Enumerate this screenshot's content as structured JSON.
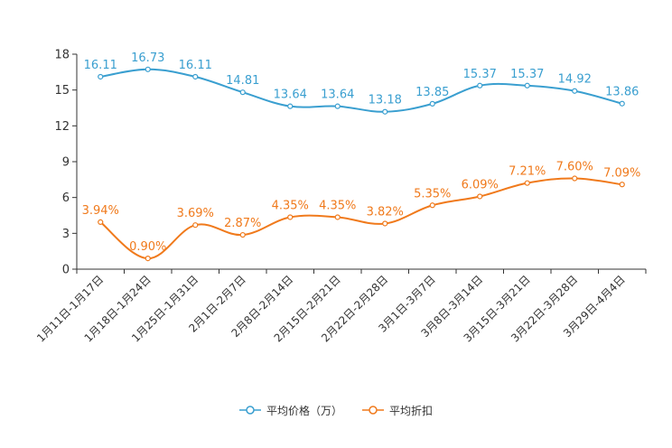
{
  "chart_data": {
    "type": "line",
    "title": "",
    "xlabel": "",
    "ylabel": "",
    "ylim": [
      0,
      18
    ],
    "yticks": [
      0,
      3,
      6,
      9,
      12,
      15,
      18
    ],
    "grid": false,
    "legend_position": "bottom-center",
    "categories": [
      "1月11日-1月17日",
      "1月18日-1月24日",
      "1月25日-1月31日",
      "2月1日-2月7日",
      "2月8日-2月14日",
      "2月15日-2月21日",
      "2月22日-2月28日",
      "3月1日-3月7日",
      "3月8日-3月14日",
      "3月15日-3月21日",
      "3月22日-3月28日",
      "3月29日-4月4日"
    ],
    "series": [
      {
        "name": "平均价格（万）",
        "color": "#3a9fd0",
        "values": [
          16.11,
          16.73,
          16.11,
          14.81,
          13.64,
          13.64,
          13.18,
          13.85,
          15.37,
          15.37,
          14.92,
          13.86
        ],
        "labels": [
          "16.11",
          "16.73",
          "16.11",
          "14.81",
          "13.64",
          "13.64",
          "13.18",
          "13.85",
          "15.37",
          "15.37",
          "14.92",
          "13.86"
        ]
      },
      {
        "name": "平均折扣",
        "color": "#f07a1c",
        "values": [
          3.94,
          0.9,
          3.69,
          2.87,
          4.35,
          4.35,
          3.82,
          5.35,
          6.09,
          7.21,
          7.6,
          7.09
        ],
        "labels": [
          "3.94%",
          "0.90%",
          "3.69%",
          "2.87%",
          "4.35%",
          "4.35%",
          "3.82%",
          "5.35%",
          "6.09%",
          "7.21%",
          "7.60%",
          "7.09%"
        ]
      }
    ]
  }
}
